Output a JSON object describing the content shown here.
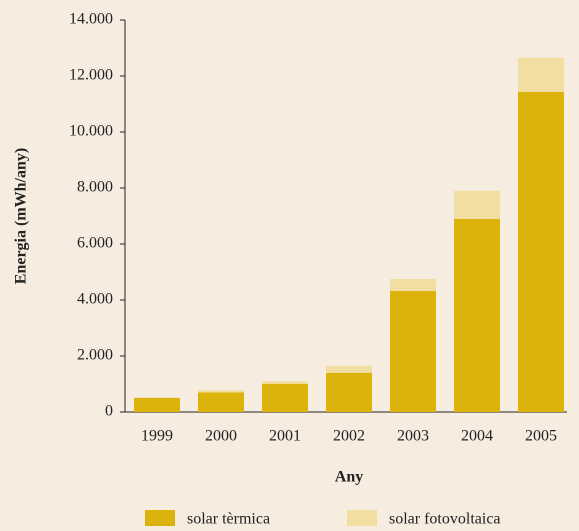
{
  "chart_data": {
    "type": "stacked_bar",
    "x_label": "Any",
    "y_label": "Energia (mWh/any)",
    "categories": [
      "1999",
      "2000",
      "2001",
      "2002",
      "2003",
      "2004",
      "2005"
    ],
    "series": [
      {
        "name": "solar tèrmica",
        "color": "#dbb30a",
        "values": [
          500,
          700,
          1000,
          1400,
          4320,
          6900,
          11430
        ]
      },
      {
        "name": "solar fotovoltaica",
        "color": "#f2dea0",
        "values": [
          20,
          80,
          100,
          250,
          430,
          1000,
          1220
        ]
      }
    ],
    "ylim": [
      0,
      14000
    ],
    "yticks": [
      0,
      {
        "value": 2000,
        "label": "2.000"
      },
      {
        "value": 4000,
        "label": "4.000"
      },
      {
        "value": 6000,
        "label": "6.000"
      },
      {
        "value": 8000,
        "label": "8.000"
      },
      {
        "value": 10000,
        "label": "10.000"
      },
      {
        "value": 12000,
        "label": "12.000"
      },
      {
        "value": 14000,
        "label": "14.000"
      }
    ]
  }
}
